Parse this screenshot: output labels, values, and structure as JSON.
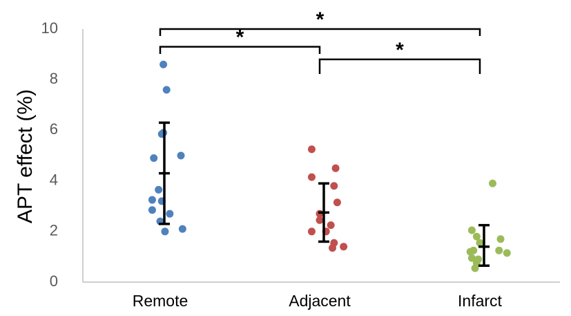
{
  "chart_data": {
    "type": "scatter",
    "title": "",
    "xlabel": "",
    "ylabel": "APT effect (%)",
    "ylim": [
      0,
      10
    ],
    "yticks": [
      "0",
      "2",
      "4",
      "6",
      "8",
      "10"
    ],
    "grid": false,
    "categories": [
      "Remote",
      "Adjacent",
      "Infarct"
    ],
    "series": [
      {
        "category": "Remote",
        "color": "#4F81BD",
        "points": [
          {
            "x": 1.02,
            "y": 8.6
          },
          {
            "x": 1.04,
            "y": 7.6
          },
          {
            "x": 1.02,
            "y": 5.9
          },
          {
            "x": 1.01,
            "y": 5.85
          },
          {
            "x": 1.13,
            "y": 5.0
          },
          {
            "x": 0.96,
            "y": 4.9
          },
          {
            "x": 0.99,
            "y": 3.65
          },
          {
            "x": 0.95,
            "y": 3.25
          },
          {
            "x": 0.95,
            "y": 2.85
          },
          {
            "x": 1.01,
            "y": 3.2
          },
          {
            "x": 1.06,
            "y": 2.7
          },
          {
            "x": 1.0,
            "y": 2.4
          },
          {
            "x": 1.14,
            "y": 2.1
          },
          {
            "x": 1.03,
            "y": 2.0
          }
        ],
        "mean": 4.3,
        "err_low": 2.3,
        "err_high": 6.3
      },
      {
        "category": "Adjacent",
        "color": "#C0504D",
        "points": [
          {
            "x": 1.95,
            "y": 5.25
          },
          {
            "x": 2.1,
            "y": 4.5
          },
          {
            "x": 1.95,
            "y": 4.15
          },
          {
            "x": 2.09,
            "y": 3.8
          },
          {
            "x": 2.11,
            "y": 3.15
          },
          {
            "x": 2.0,
            "y": 2.7
          },
          {
            "x": 2.0,
            "y": 2.45
          },
          {
            "x": 2.07,
            "y": 2.25
          },
          {
            "x": 1.95,
            "y": 2.0
          },
          {
            "x": 2.04,
            "y": 2.0
          },
          {
            "x": 2.09,
            "y": 1.55
          },
          {
            "x": 2.15,
            "y": 1.4
          },
          {
            "x": 2.08,
            "y": 1.35
          }
        ],
        "mean": 2.75,
        "err_low": 1.6,
        "err_high": 3.9
      },
      {
        "category": "Infarct",
        "color": "#9BBB59",
        "points": [
          {
            "x": 3.08,
            "y": 3.9
          },
          {
            "x": 2.95,
            "y": 2.05
          },
          {
            "x": 2.98,
            "y": 1.8
          },
          {
            "x": 3.13,
            "y": 1.7
          },
          {
            "x": 3.0,
            "y": 1.55
          },
          {
            "x": 2.94,
            "y": 1.2
          },
          {
            "x": 2.96,
            "y": 1.25
          },
          {
            "x": 3.12,
            "y": 1.25
          },
          {
            "x": 3.17,
            "y": 1.15
          },
          {
            "x": 2.95,
            "y": 0.95
          },
          {
            "x": 2.99,
            "y": 0.9
          },
          {
            "x": 2.98,
            "y": 0.75
          },
          {
            "x": 2.97,
            "y": 0.55
          }
        ],
        "mean": 1.4,
        "err_low": 0.65,
        "err_high": 2.25
      }
    ],
    "significance": [
      {
        "from": "Remote",
        "to": "Infarct",
        "y": 10.0,
        "label": "*"
      },
      {
        "from": "Remote",
        "to": "Adjacent",
        "y": 9.3,
        "label": "*"
      },
      {
        "from": "Adjacent",
        "to": "Infarct",
        "y": 8.8,
        "label": "*"
      }
    ]
  }
}
